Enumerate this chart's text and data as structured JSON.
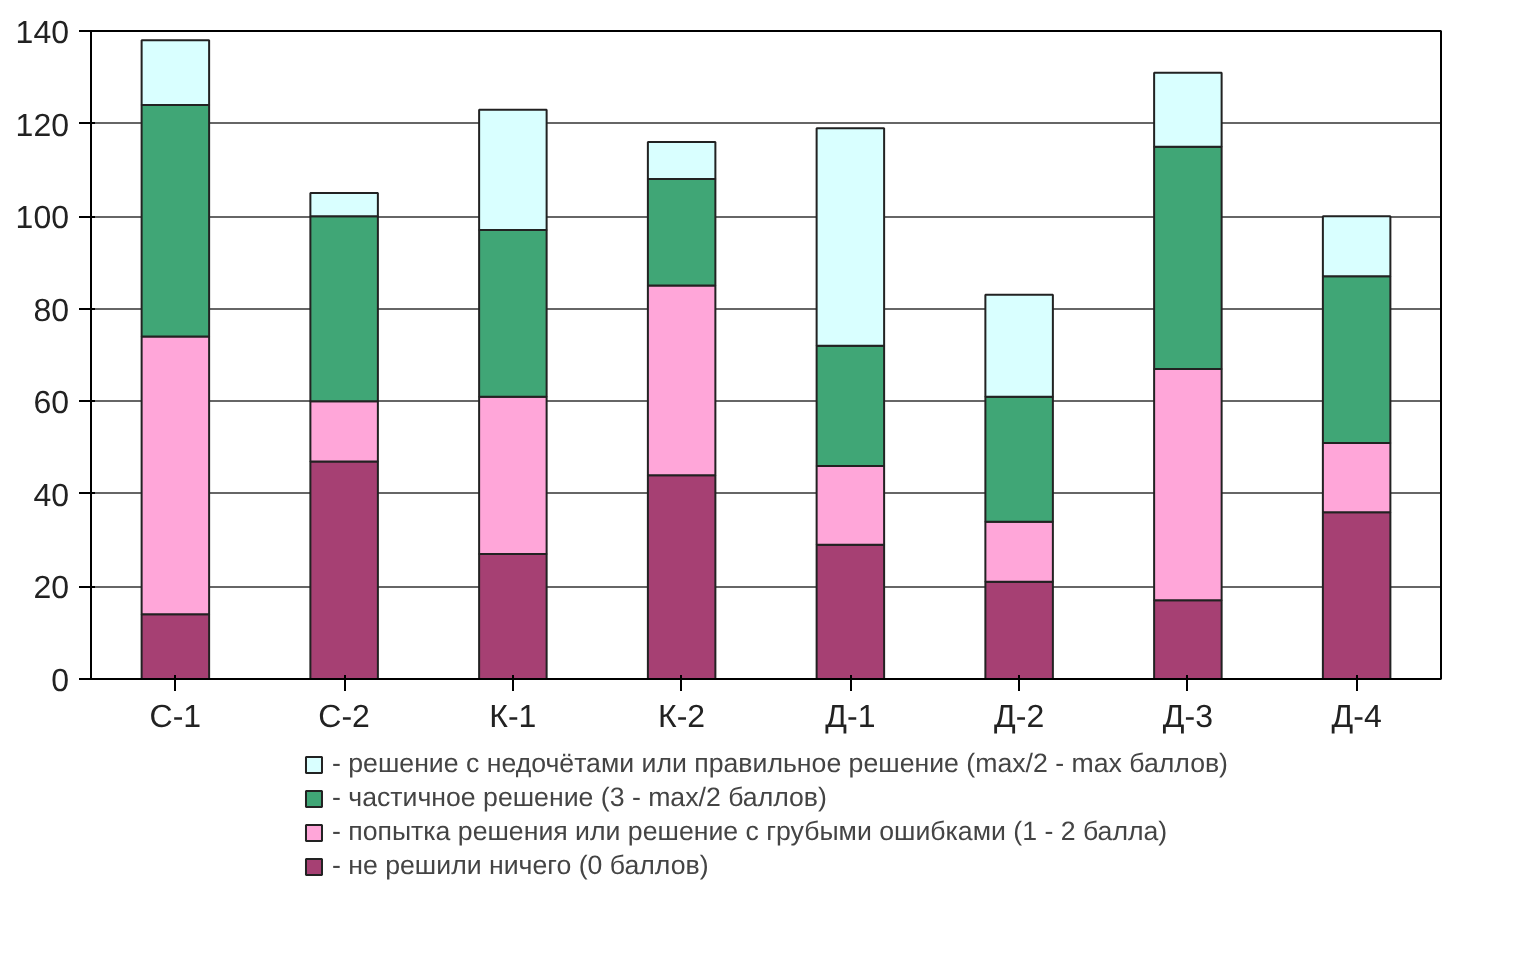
{
  "chart_data": {
    "type": "bar",
    "stacked": true,
    "categories": [
      "С-1",
      "С-2",
      "К-1",
      "К-2",
      "Д-1",
      "Д-2",
      "Д-3",
      "Д-4"
    ],
    "series": [
      {
        "name": "- не решили ничего (0 баллов)",
        "color": "#a64073",
        "values": [
          14,
          47,
          27,
          44,
          29,
          21,
          17,
          36
        ]
      },
      {
        "name": "- попытка решения или решение с грубыми ошибками (1 - 2 балла)",
        "color": "#ffa6d9",
        "values": [
          60,
          13,
          34,
          41,
          17,
          13,
          50,
          15
        ]
      },
      {
        "name": "- частичное решение (3 - max/2 баллов)",
        "color": "#40a676",
        "values": [
          50,
          40,
          36,
          23,
          26,
          27,
          48,
          36
        ]
      },
      {
        "name": "- решение с недочётами или правильное решение (max/2 - max баллов)",
        "color": "#d9ffff",
        "values": [
          14,
          5,
          26,
          8,
          47,
          22,
          16,
          13
        ]
      }
    ],
    "ylim": [
      0,
      140
    ],
    "yticks": [
      0,
      20,
      40,
      60,
      80,
      100,
      120,
      140
    ],
    "grid": "y",
    "legend": "bottom"
  }
}
